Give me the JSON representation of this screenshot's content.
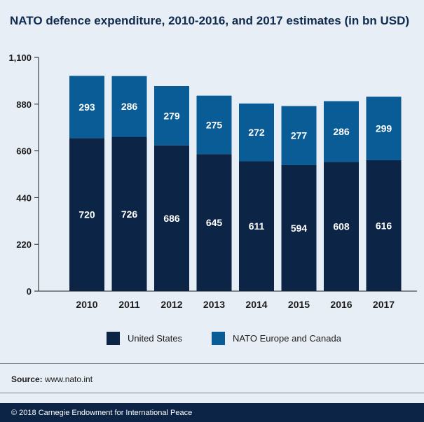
{
  "title": "NATO defence expenditure, 2010-2016, and 2017 estimates (in bn USD)",
  "colors": {
    "background": "#e8eef5",
    "us": "#0c2445",
    "europe": "#0a5c96",
    "title": "#0e2a4f"
  },
  "chart_data": {
    "type": "bar",
    "stacked": true,
    "title": "NATO defence expenditure, 2010-2016, and 2017 estimates (in bn USD)",
    "categories": [
      "2010",
      "2011",
      "2012",
      "2013",
      "2014",
      "2015",
      "2016",
      "2017"
    ],
    "series": [
      {
        "name": "United States",
        "values": [
          720,
          726,
          686,
          645,
          611,
          594,
          608,
          616
        ]
      },
      {
        "name": "NATO Europe and Canada",
        "values": [
          293,
          286,
          279,
          275,
          272,
          277,
          286,
          299
        ]
      }
    ],
    "yticks": [
      0,
      220,
      440,
      660,
      880,
      1100
    ],
    "ytick_labels": [
      "0",
      "220",
      "440",
      "660",
      "880",
      "1,100"
    ],
    "ylim": [
      0,
      1100
    ],
    "xlabel": "",
    "ylabel": "",
    "grid": false,
    "legend_position": "bottom-center"
  },
  "legend": {
    "us_label": "United States",
    "europe_label": "NATO Europe and Canada"
  },
  "source": {
    "label": "Source:",
    "text": "www.nato.int"
  },
  "footer": {
    "text": "© 2018 Carnegie Endowment for International Peace"
  }
}
